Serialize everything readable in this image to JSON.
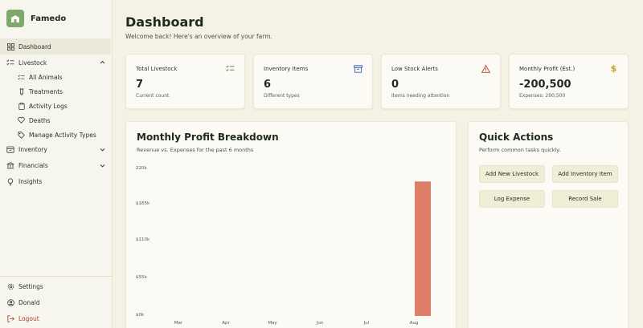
{
  "app": {
    "name": "Famedo"
  },
  "sidebar": {
    "items": [
      {
        "label": "Dashboard"
      },
      {
        "label": "Livestock"
      },
      {
        "label": "All Animals"
      },
      {
        "label": "Treatments"
      },
      {
        "label": "Activity Logs"
      },
      {
        "label": "Deaths"
      },
      {
        "label": "Manage Activity Types"
      },
      {
        "label": "Inventory"
      },
      {
        "label": "Financials"
      },
      {
        "label": "Insights"
      }
    ],
    "bottom": [
      {
        "label": "Settings"
      },
      {
        "label": "Donald"
      },
      {
        "label": "Logout"
      }
    ]
  },
  "header": {
    "title": "Dashboard",
    "subtitle": "Welcome back! Here's an overview of your farm."
  },
  "stats": [
    {
      "title": "Total Livestock",
      "value": "7",
      "sub": "Current count",
      "icon": "checklist-icon"
    },
    {
      "title": "Inventory Items",
      "value": "6",
      "sub": "Different types",
      "icon": "archive-box-icon"
    },
    {
      "title": "Low Stock Alerts",
      "value": "0",
      "sub": "Items needing attention",
      "icon": "warning-triangle-icon"
    },
    {
      "title": "Monthly Profit (Est.)",
      "value": "-200,500",
      "sub": "Expenses: 200,500",
      "icon": "dollar-icon"
    }
  ],
  "chart_panel": {
    "title": "Monthly Profit Breakdown",
    "subtitle": "Revenue vs. Expenses for the past 6 months"
  },
  "chart_data": {
    "type": "bar",
    "categories": [
      "Mar",
      "Apr",
      "May",
      "Jun",
      "Jul",
      "Aug"
    ],
    "series": [
      {
        "values": [
          0,
          0,
          0,
          0,
          0,
          0
        ],
        "color": "#7fa86a"
      },
      {
        "values": [
          0,
          0,
          0,
          0,
          0,
          200500
        ],
        "color": "#de7e68"
      }
    ],
    "yticks": [
      "$0k",
      "$55k",
      "$110k",
      "$165k",
      "220k"
    ],
    "ylim": [
      0,
      220000
    ],
    "grid": false
  },
  "quick_actions": {
    "title": "Quick Actions",
    "subtitle": "Perform common tasks quickly.",
    "buttons": [
      {
        "label": "Add New Livestock"
      },
      {
        "label": "Add Inventory Item"
      },
      {
        "label": "Log Expense"
      },
      {
        "label": "Record Sale"
      }
    ]
  },
  "colors": {
    "accent": "#7fa86a",
    "expense_bar": "#de7e68",
    "logout": "#b2402c",
    "background": "#f4f2e4"
  }
}
